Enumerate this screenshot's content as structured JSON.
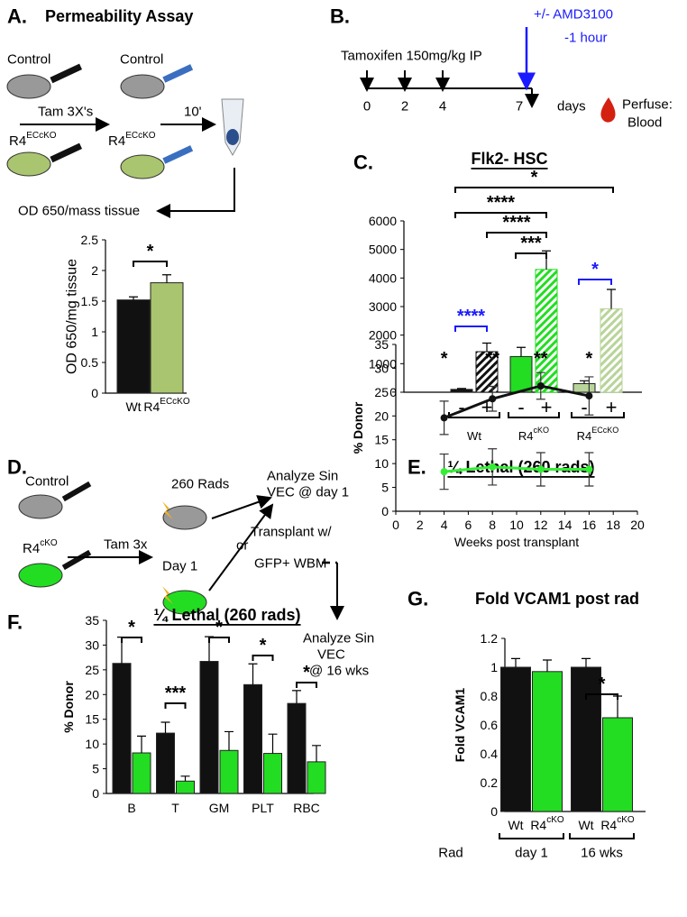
{
  "panels": {
    "a": {
      "letter": "A.",
      "title": "Permeability Assay",
      "control_1": "Control",
      "control_2": "Control",
      "ko_1": {
        "base": "R4",
        "sup": "ECcKO"
      },
      "ko_2": {
        "base": "R4",
        "sup": "ECcKO"
      },
      "tam": "Tam 3X's",
      "time": "10'",
      "readout": "OD 650/mass tissue"
    },
    "b": {
      "letter": "B.",
      "treatment": "Tamoxifen 150mg/kg IP",
      "drug": "+/- AMD3100",
      "drug_time": "-1  hour",
      "days": [
        "0",
        "2",
        "4",
        "7"
      ],
      "days_label": "days",
      "perfuse": "Perfuse:",
      "blood": "Blood"
    },
    "c": {
      "letter": "C."
    },
    "d": {
      "letter": "D.",
      "control": "Control",
      "ko": {
        "base": "R4",
        "sup": "cKO"
      },
      "tam": "Tam 3x",
      "rads": "260 Rads",
      "day": "Day 1",
      "analyze_1": [
        "Analyze Sin",
        "VEC @ day 1"
      ],
      "or": "or",
      "transplant": [
        "Transplant w/",
        "GFP+ WBM"
      ],
      "analyze_2": [
        "Analyze Sin",
        "VEC",
        "@ 16 wks"
      ]
    },
    "e": {
      "letter": "E."
    },
    "f": {
      "letter": "F."
    },
    "g": {
      "letter": "G."
    }
  },
  "chart_data": [
    {
      "type": "bar",
      "ylabel": "OD 650/mg tissue",
      "categories": [
        "Wt",
        "R4"
      ],
      "categories_sup": [
        null,
        "ECcKO"
      ],
      "values": [
        1.52,
        1.8
      ],
      "errors": [
        0.05,
        0.13
      ],
      "colors": [
        "#111111",
        "#a9c56f"
      ],
      "ylim": [
        0,
        2.5
      ],
      "yticks": [
        0,
        0.5,
        1,
        1.5,
        2,
        2.5
      ],
      "annotations": [
        {
          "text": "*",
          "color": "#000000"
        }
      ]
    },
    {
      "type": "bar",
      "title": "Flk2- HSC",
      "categories": [
        "-",
        "+",
        "-",
        "+",
        "-",
        "+"
      ],
      "groups": [
        "Wt",
        "R4",
        "R4"
      ],
      "groups_sup": [
        null,
        "cKO",
        "ECcKO"
      ],
      "values": [
        100,
        1420,
        1250,
        4300,
        300,
        2920
      ],
      "errors": [
        30,
        300,
        320,
        650,
        100,
        680
      ],
      "colors": [
        "#111111",
        "#111111",
        "#22dd22",
        "#22dd22",
        "#b9d49a",
        "#b9d49a"
      ],
      "hatched": [
        false,
        true,
        false,
        true,
        false,
        true
      ],
      "ylim": [
        0,
        6000
      ],
      "yticks": [
        0,
        1000,
        2000,
        3000,
        4000,
        5000,
        6000
      ],
      "annotations": [
        {
          "text": "*",
          "color": "#000000"
        },
        {
          "text": "****",
          "color": "#000000"
        },
        {
          "text": "****",
          "color": "#000000"
        },
        {
          "text": "***",
          "color": "#000000"
        },
        {
          "text": "****",
          "color": "#1a1aff"
        },
        {
          "text": "*",
          "color": "#1a1aff"
        }
      ]
    },
    {
      "type": "line",
      "title": "¼  Lethal (260 rads)",
      "xlabel": "Weeks post transplant",
      "ylabel": "% Donor",
      "x": [
        4,
        8,
        12,
        16
      ],
      "series": [
        {
          "color": "#111111",
          "values": [
            19.6,
            23.6,
            26.3,
            24.2
          ],
          "errors": [
            3.5,
            2.6,
            2.8,
            4
          ]
        },
        {
          "color": "#33ee33",
          "values": [
            8.3,
            9.3,
            8.8,
            8.8
          ],
          "errors": [
            3.7,
            3.8,
            3.5,
            3.5
          ]
        }
      ],
      "xlim": [
        0,
        20
      ],
      "xticks": [
        0,
        2,
        4,
        6,
        8,
        10,
        12,
        14,
        16,
        18,
        20
      ],
      "ylim": [
        0,
        35
      ],
      "yticks": [
        0,
        5,
        10,
        15,
        20,
        25,
        30,
        35
      ],
      "annotations": [
        {
          "text": "*",
          "color": "#000000"
        },
        {
          "text": "**",
          "color": "#000000"
        },
        {
          "text": "**",
          "color": "#000000"
        },
        {
          "text": "*",
          "color": "#000000"
        }
      ]
    },
    {
      "type": "grouped_bar",
      "title": "¼  Lethal (260 rads)",
      "ylabel": "% Donor",
      "categories": [
        "B",
        "T",
        "GM",
        "PLT",
        "RBC"
      ],
      "series": [
        {
          "color": "#111111",
          "values": [
            26.3,
            12.2,
            26.7,
            22,
            18.2
          ],
          "errors": [
            5.3,
            2.2,
            5,
            4.2,
            2.6
          ]
        },
        {
          "color": "#22dd22",
          "values": [
            8.2,
            2.5,
            8.7,
            8.1,
            6.4
          ],
          "errors": [
            3.4,
            1,
            3.8,
            3.9,
            3.3
          ]
        }
      ],
      "ylim": [
        0,
        35
      ],
      "yticks": [
        0,
        5,
        10,
        15,
        20,
        25,
        30,
        35
      ],
      "annotations": [
        {
          "text": "*",
          "color": "#000000"
        },
        {
          "text": "***",
          "color": "#000000"
        },
        {
          "text": "*",
          "color": "#000000"
        },
        {
          "text": "*",
          "color": "#000000"
        },
        {
          "text": "*",
          "color": "#000000"
        }
      ]
    },
    {
      "type": "bar",
      "title": "Fold VCAM1 post rad",
      "ylabel": "Fold VCAM1",
      "categories": [
        "Wt",
        "R4",
        "Wt",
        "R4"
      ],
      "categories_sup": [
        null,
        "cKO",
        null,
        "cKO"
      ],
      "groups": [
        "day 1",
        "16 wks"
      ],
      "group_axis_label": "Rad",
      "values": [
        1,
        0.97,
        1,
        0.65
      ],
      "errors": [
        0.06,
        0.08,
        0.06,
        0.15
      ],
      "colors": [
        "#111111",
        "#22dd22",
        "#111111",
        "#22dd22"
      ],
      "ylim": [
        0,
        1.2
      ],
      "yticks": [
        0,
        0.2,
        0.4,
        0.6,
        0.8,
        1,
        1.2
      ],
      "annotations": [
        {
          "text": "*",
          "color": "#000000"
        }
      ]
    }
  ]
}
